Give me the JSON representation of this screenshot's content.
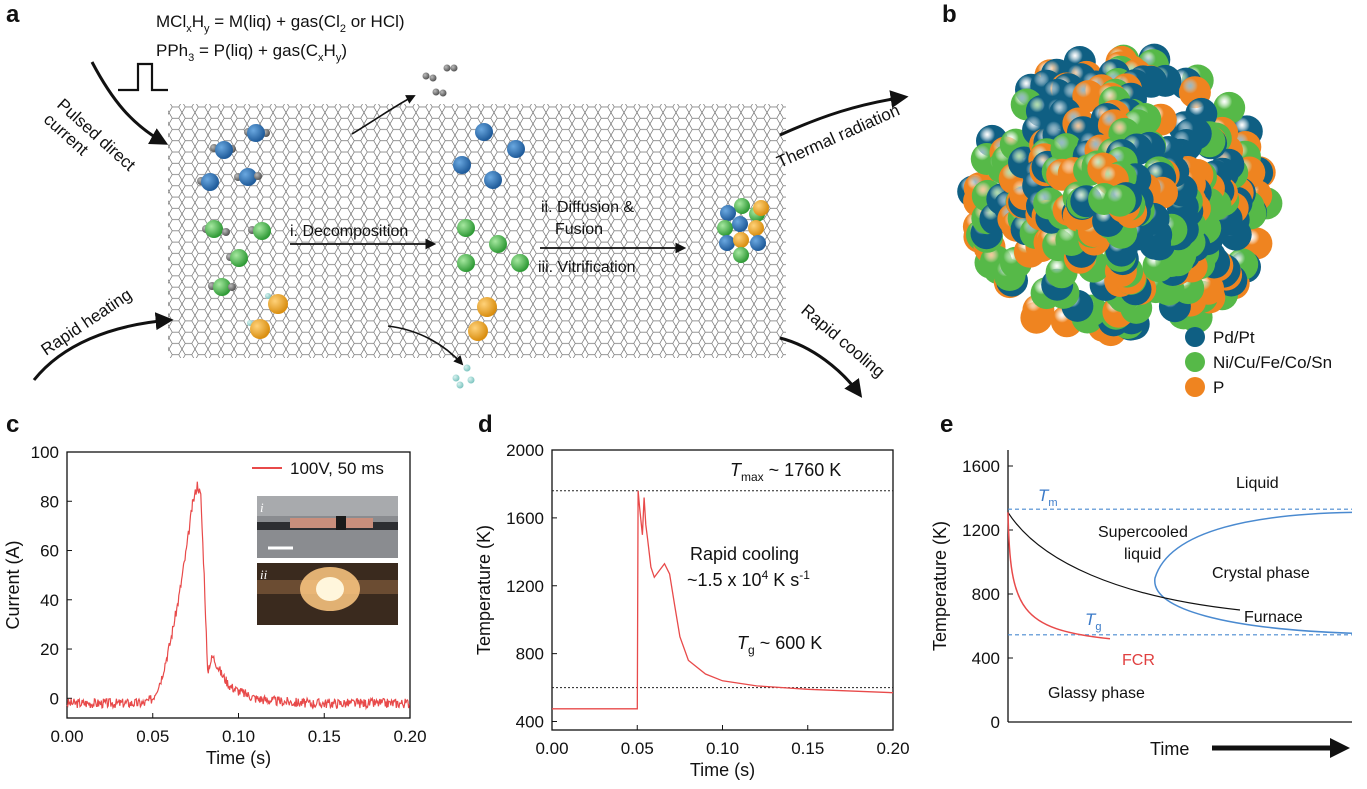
{
  "panel_a": {
    "label": "a",
    "eq1": "MCl",
    "eq1_sub_x": "x",
    "eq1_H": "H",
    "eq1_sub_y": "y",
    "eq1_rest": " = M(liq) + gas(Cl",
    "eq1_sub_2": "2",
    "eq1_end": " or HCl)",
    "eq2": "PPh",
    "eq2_sub_3": "3",
    "eq2_rest": " = P(liq) + gas(C",
    "eq2_sub_x": "x",
    "eq2_H": "H",
    "eq2_sub_y": "y",
    "eq2_end": ")",
    "pulsed_line1": "Pulsed direct",
    "pulsed_line2": "current",
    "rapid_heating": "Rapid heating",
    "thermal_radiation": "Thermal radiation",
    "rapid_cooling": "Rapid cooling",
    "step1": "i. Decomposition",
    "step2a": "ii. Diffusion &",
    "step2b": "Fusion",
    "step3": "iii. Vitrification"
  },
  "panel_b": {
    "label": "b",
    "legend": [
      {
        "label": "Pd/Pt",
        "color": "#0f5f83"
      },
      {
        "label": "Ni/Cu/Fe/Co/Sn",
        "color": "#56b948"
      },
      {
        "label": "P",
        "color": "#ef8420"
      }
    ]
  },
  "chart_data": [
    {
      "panel": "c",
      "type": "line",
      "xlabel": "Time (s)",
      "ylabel": "Current (A)",
      "xlim": [
        0,
        0.2
      ],
      "ylim": [
        -8,
        100
      ],
      "xticks": [
        "0.00",
        "0.05",
        "0.10",
        "0.15",
        "0.20"
      ],
      "yticks": [
        "0",
        "20",
        "40",
        "60",
        "80",
        "100"
      ],
      "series": [
        {
          "name": "100V, 50 ms",
          "color": "#e84a4a",
          "x": [
            0,
            0.045,
            0.05,
            0.055,
            0.06,
            0.065,
            0.07,
            0.073,
            0.076,
            0.078,
            0.08,
            0.082,
            0.083,
            0.085,
            0.088,
            0.09,
            0.095,
            0.1,
            0.11,
            0.12,
            0.14,
            0.16,
            0.2
          ],
          "y": [
            -2,
            -2,
            0,
            8,
            22,
            40,
            62,
            78,
            87,
            82,
            50,
            10,
            14,
            17,
            13,
            10,
            5,
            3,
            0,
            -1,
            -2,
            -2,
            -2
          ]
        }
      ],
      "insets": [
        "i",
        "ii"
      ]
    },
    {
      "panel": "d",
      "type": "line",
      "xlabel": "Time (s)",
      "ylabel": "Temperature (K)",
      "xlim": [
        0,
        0.2
      ],
      "ylim": [
        350,
        2000
      ],
      "xticks": [
        "0.00",
        "0.05",
        "0.10",
        "0.15",
        "0.20"
      ],
      "yticks": [
        "400",
        "800",
        "1200",
        "1600",
        "2000"
      ],
      "annotations": {
        "tmax_T": "T",
        "tmax_sub": "max",
        "tmax_rest": " ~ 1760 K",
        "tg_T": "T",
        "tg_sub": "g",
        "tg_rest": " ~ 600 K",
        "cooling_line1": "Rapid cooling",
        "cooling_line2": "~1.5 x 10",
        "cooling_sup4": "4",
        "cooling_unit": " K s",
        "cooling_sup_neg1": "-1"
      },
      "reference_lines": [
        1760,
        600
      ],
      "series": [
        {
          "color": "#e84a4a",
          "x": [
            0,
            0.05,
            0.0505,
            0.0515,
            0.053,
            0.054,
            0.055,
            0.056,
            0.058,
            0.06,
            0.063,
            0.066,
            0.069,
            0.072,
            0.075,
            0.08,
            0.09,
            0.1,
            0.12,
            0.15,
            0.2
          ],
          "y": [
            475,
            475,
            1760,
            1650,
            1500,
            1720,
            1560,
            1480,
            1310,
            1250,
            1290,
            1330,
            1270,
            1080,
            900,
            760,
            680,
            640,
            610,
            590,
            570
          ]
        }
      ]
    },
    {
      "panel": "e",
      "type": "line",
      "xlabel": "Time",
      "ylabel": "Temperature (K)",
      "ylim": [
        0,
        1700
      ],
      "yticks": [
        "0",
        "400",
        "800",
        "1200",
        "1600"
      ],
      "labels": {
        "tm_T": "T",
        "tm_sub": "m",
        "tg_T": "T",
        "tg_sub": "g",
        "liquid": "Liquid",
        "supercooled1": "Supercooled",
        "supercooled2": "liquid",
        "crystal": "Crystal phase",
        "furnace": "Furnace",
        "fcr": "FCR",
        "glassy": "Glassy phase"
      },
      "reference_lines": [
        1330,
        545
      ]
    }
  ]
}
